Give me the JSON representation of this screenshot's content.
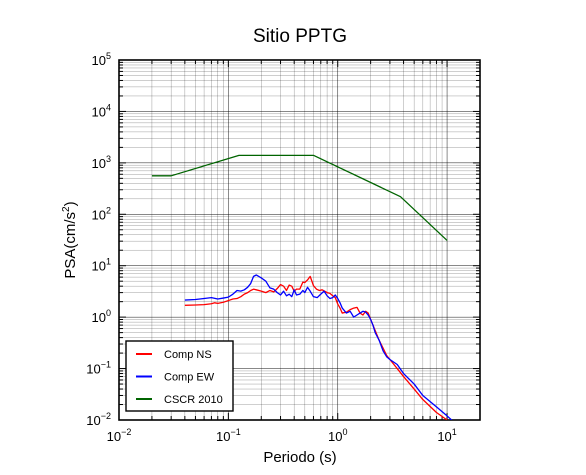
{
  "chart_data": {
    "type": "line",
    "title": "Sitio PPTG",
    "xlabel": "Periodo (s)",
    "ylabel_base": "PSA(cm/s",
    "ylabel_sup": "2",
    "ylabel_close": ")",
    "x_scale": "log",
    "y_scale": "log",
    "xlim": [
      0.01,
      20
    ],
    "ylim": [
      0.01,
      100000
    ],
    "grid": true,
    "legend_position": "bottom-left",
    "x_ticks": [
      {
        "value": 0.01,
        "base": "10",
        "exp": "−2"
      },
      {
        "value": 0.1,
        "base": "10",
        "exp": "−1"
      },
      {
        "value": 1,
        "base": "10",
        "exp": "0"
      },
      {
        "value": 10,
        "base": "10",
        "exp": "1"
      }
    ],
    "y_ticks": [
      {
        "value": 0.01,
        "base": "10",
        "exp": "−2"
      },
      {
        "value": 0.1,
        "base": "10",
        "exp": "−1"
      },
      {
        "value": 1,
        "base": "10",
        "exp": "0"
      },
      {
        "value": 10,
        "base": "10",
        "exp": "1"
      },
      {
        "value": 100,
        "base": "10",
        "exp": "2"
      },
      {
        "value": 1000,
        "base": "10",
        "exp": "3"
      },
      {
        "value": 10000,
        "base": "10",
        "exp": "4"
      },
      {
        "value": 100000,
        "base": "10",
        "exp": "5"
      }
    ],
    "series": [
      {
        "name": "Comp NS",
        "color": "#ff0000",
        "x": [
          0.04,
          0.05,
          0.06,
          0.07,
          0.075,
          0.08,
          0.09,
          0.1,
          0.11,
          0.12,
          0.13,
          0.14,
          0.15,
          0.16,
          0.17,
          0.18,
          0.2,
          0.22,
          0.24,
          0.26,
          0.28,
          0.3,
          0.32,
          0.34,
          0.36,
          0.38,
          0.4,
          0.42,
          0.45,
          0.48,
          0.5,
          0.53,
          0.56,
          0.6,
          0.64,
          0.68,
          0.72,
          0.76,
          0.8,
          0.85,
          0.9,
          0.95,
          1.0,
          1.05,
          1.1,
          1.2,
          1.3,
          1.4,
          1.5,
          1.6,
          1.7,
          1.8,
          1.9,
          2.0,
          2.1,
          2.2,
          2.4,
          2.6,
          2.8,
          3.0,
          3.5,
          4.0,
          5.0,
          6.0,
          8.0,
          10.0
        ],
        "y": [
          1.7,
          1.72,
          1.75,
          1.82,
          1.9,
          1.85,
          1.95,
          2.1,
          2.25,
          2.3,
          2.5,
          2.8,
          3.0,
          3.3,
          3.5,
          3.4,
          3.2,
          3.0,
          3.3,
          3.1,
          3.6,
          4.3,
          4.0,
          3.3,
          4.2,
          4.0,
          3.2,
          3.5,
          3.5,
          4.8,
          4.7,
          5.3,
          6.2,
          4.1,
          3.5,
          3.3,
          3.4,
          3.2,
          3.0,
          2.9,
          2.6,
          2.4,
          1.8,
          1.5,
          1.2,
          1.25,
          1.4,
          1.5,
          1.55,
          1.2,
          1.1,
          1.3,
          1.2,
          0.9,
          0.7,
          0.55,
          0.35,
          0.25,
          0.18,
          0.15,
          0.1,
          0.07,
          0.04,
          0.025,
          0.014,
          0.01
        ]
      },
      {
        "name": "Comp EW",
        "color": "#0000ff",
        "x": [
          0.04,
          0.05,
          0.06,
          0.07,
          0.08,
          0.09,
          0.1,
          0.11,
          0.12,
          0.13,
          0.14,
          0.15,
          0.16,
          0.17,
          0.18,
          0.2,
          0.22,
          0.24,
          0.26,
          0.28,
          0.3,
          0.32,
          0.34,
          0.36,
          0.38,
          0.4,
          0.42,
          0.45,
          0.48,
          0.5,
          0.53,
          0.56,
          0.6,
          0.65,
          0.7,
          0.75,
          0.8,
          0.85,
          0.9,
          0.95,
          1.0,
          1.05,
          1.1,
          1.2,
          1.3,
          1.4,
          1.5,
          1.6,
          1.7,
          1.8,
          1.9,
          2.0,
          2.1,
          2.2,
          2.4,
          2.6,
          2.8,
          3.0,
          3.5,
          4.0,
          5.0,
          6.0,
          8.0,
          10.0,
          11.0
        ],
        "y": [
          2.15,
          2.2,
          2.3,
          2.4,
          2.25,
          2.35,
          2.45,
          2.8,
          3.3,
          3.2,
          3.4,
          3.8,
          4.5,
          6.2,
          6.6,
          5.8,
          5.0,
          3.7,
          3.5,
          3.0,
          2.7,
          3.2,
          2.6,
          2.8,
          2.5,
          3.4,
          2.7,
          2.8,
          3.3,
          3.0,
          3.8,
          3.2,
          2.5,
          2.4,
          2.8,
          3.2,
          2.6,
          2.3,
          2.4,
          2.7,
          2.3,
          1.9,
          1.5,
          1.2,
          1.3,
          1.0,
          1.1,
          1.2,
          1.3,
          1.25,
          1.1,
          0.9,
          0.7,
          0.5,
          0.35,
          0.22,
          0.17,
          0.15,
          0.12,
          0.08,
          0.05,
          0.03,
          0.018,
          0.012,
          0.01
        ]
      },
      {
        "name": "CSCR 2010",
        "color": "#006400",
        "x": [
          0.02,
          0.03,
          0.125,
          0.6,
          3.75,
          10.0
        ],
        "y": [
          560,
          560,
          1400,
          1400,
          220,
          31
        ]
      }
    ]
  }
}
